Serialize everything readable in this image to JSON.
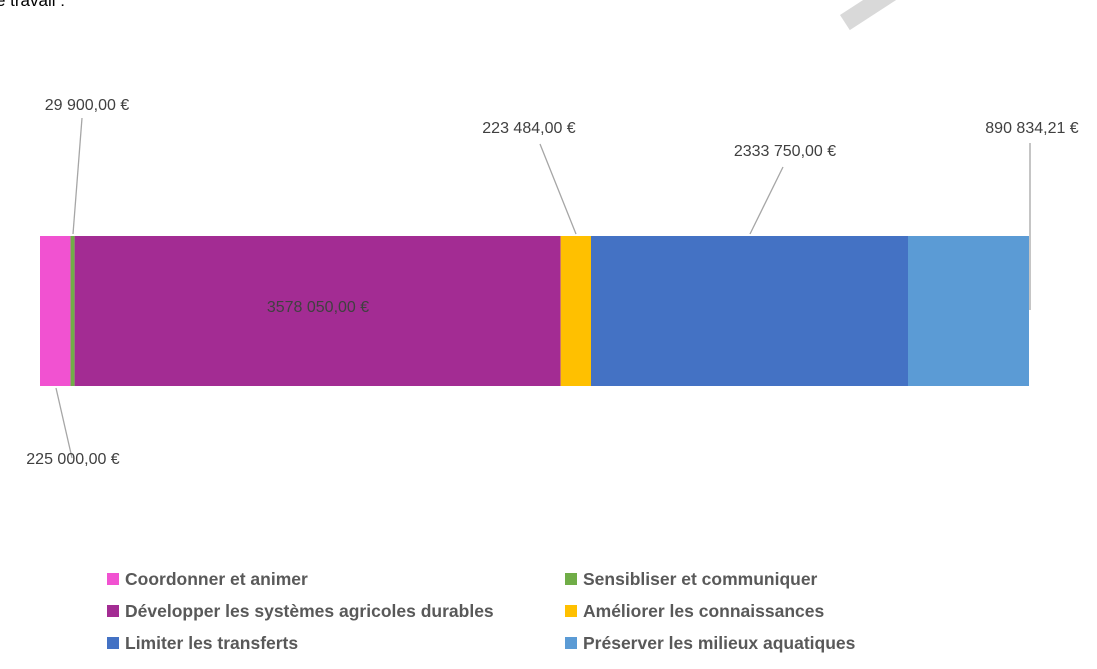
{
  "page": {
    "top_text": "e travail :"
  },
  "chart_data": {
    "type": "bar",
    "orientation": "horizontal-stacked-100",
    "series": [
      {
        "name": "Coordonner et animer",
        "values": [
          225000.0
        ],
        "label": "225 000,00 €",
        "color": "#f152d1"
      },
      {
        "name": "Sensibliser et communiquer",
        "values": [
          29900.0
        ],
        "label": "29 900,00 €",
        "color": "#70ad47"
      },
      {
        "name": "Développer les systèmes agricoles durables",
        "values": [
          3578050.0
        ],
        "label": "3578 050,00 €",
        "color": "#a32c93"
      },
      {
        "name": "Améliorer les connaissances",
        "values": [
          223484.0
        ],
        "label": "223 484,00 €",
        "color": "#ffc000"
      },
      {
        "name": "Limiter les transferts",
        "values": [
          2333750.0
        ],
        "label": "2333 750,00 €",
        "color": "#4472c4"
      },
      {
        "name": "Préserver les milieux aquatiques",
        "values": [
          890834.21
        ],
        "label": "890 834,21 €",
        "color": "#5b9bd5"
      }
    ],
    "legend_placement": "bottom",
    "grid": false
  }
}
